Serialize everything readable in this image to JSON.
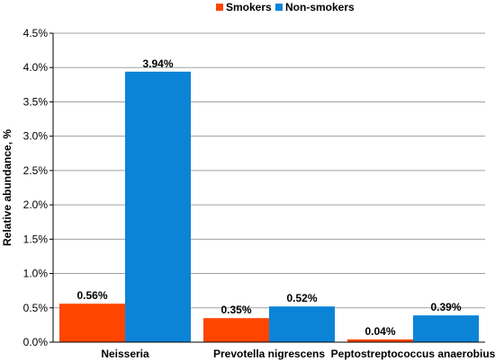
{
  "chart_data": {
    "type": "bar",
    "categories": [
      "Neisseria",
      "Prevotella nigrescens",
      "Peptostreptococcus anaerobius"
    ],
    "series": [
      {
        "name": "Smokers",
        "color": "#ff4500",
        "values": [
          0.56,
          0.35,
          0.04
        ],
        "labels": [
          "0.56%",
          "0.35%",
          "0.04%"
        ]
      },
      {
        "name": "Non-smokers",
        "color": "#0b84d8",
        "values": [
          3.94,
          0.52,
          0.39
        ],
        "labels": [
          "3.94%",
          "0.52%",
          "0.39%"
        ]
      }
    ],
    "xlabel": "",
    "ylabel": "Relative abundance, %",
    "ylim": [
      0,
      4.5
    ],
    "yticks": [
      0,
      0.5,
      1.0,
      1.5,
      2.0,
      2.5,
      3.0,
      3.5,
      4.0,
      4.5
    ],
    "ytick_labels": [
      "0.0%",
      "0.5%",
      "1.0%",
      "1.5%",
      "2.0%",
      "2.5%",
      "3.0%",
      "3.5%",
      "4.0%",
      "4.5%"
    ],
    "grid": true,
    "legend_position": "top-center"
  }
}
